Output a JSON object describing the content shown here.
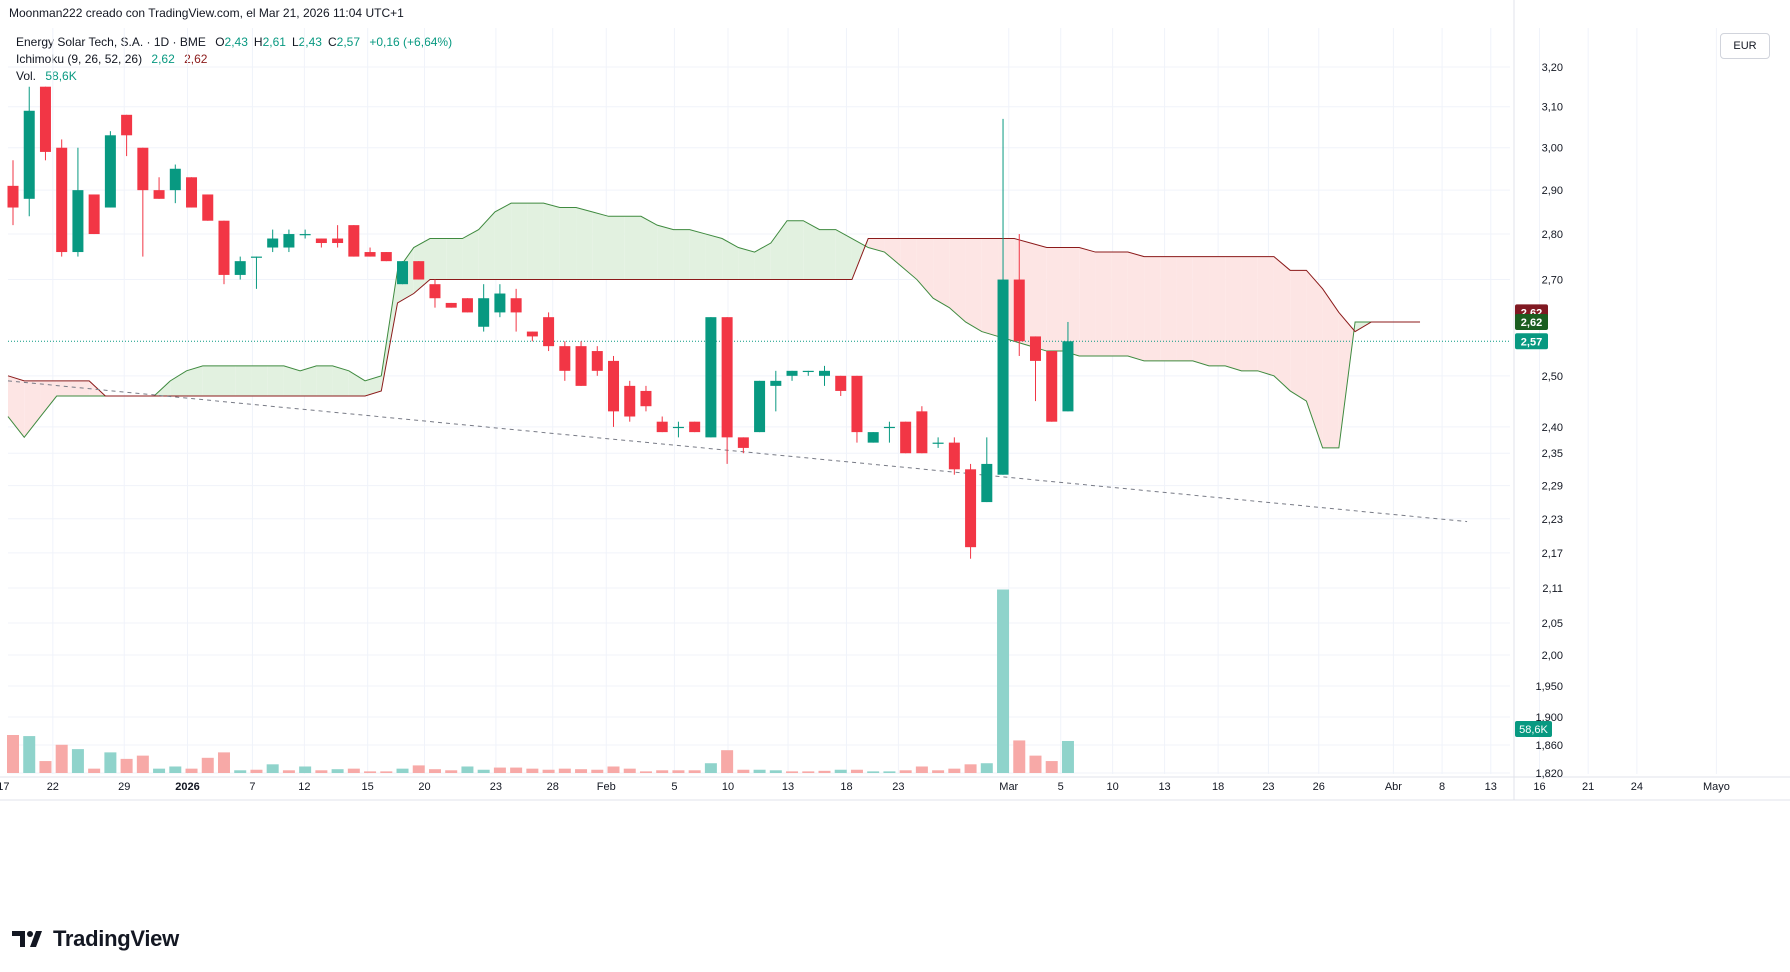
{
  "credit": "Moonman222 creado con TradingView.com, el Mar 21, 2026 11:04 UTC+1",
  "legend": {
    "symbol": "Energy Solar Tech, S.A. · 1D · BME",
    "ohlc": [
      {
        "k": "O",
        "v": "2,43"
      },
      {
        "k": "H",
        "v": "2,61"
      },
      {
        "k": "L",
        "v": "2,43"
      },
      {
        "k": "C",
        "v": "2,57"
      }
    ],
    "change": "+0,16 (+6,64%)",
    "ichimoku_label": "Ichimoku (9, 26, 52, 26)",
    "ichimoku_values": [
      "2,62",
      "2,62"
    ],
    "volume_label": "Vol.",
    "volume_value": "58,6K"
  },
  "currency": "EUR",
  "brand": "TradingView",
  "colors": {
    "up": "#089981",
    "down": "#f23645",
    "vol_up": "#8fd3cb",
    "vol_down": "#f7a9a7",
    "cloud_bull": "#e2f1e0",
    "cloud_bear": "#fde5e4",
    "span_a": "#3f8a3f",
    "span_b": "#8b1a1a",
    "price_line": "#089981",
    "trend": "#787b86"
  },
  "chart_data": {
    "type": "candlestick",
    "y_scale": "log",
    "ylim": [
      1.82,
      3.25
    ],
    "y_ticks": [
      "3,20",
      "3,10",
      "3,00",
      "2,90",
      "2,80",
      "2,70",
      "2,50",
      "2,40",
      "2,35",
      "2,29",
      "2,23",
      "2,17",
      "2,11",
      "2,05",
      "2,00",
      "1,950",
      "1,900",
      "1,860",
      "1,820"
    ],
    "x_ticks": [
      "17",
      "22",
      "29",
      "2026",
      "7",
      "12",
      "15",
      "20",
      "23",
      "28",
      "Feb",
      "5",
      "10",
      "13",
      "18",
      "23",
      "Mar",
      "5",
      "10",
      "13",
      "18",
      "23",
      "26",
      "Abr",
      "8",
      "13",
      "16",
      "21",
      "24",
      "Mayo"
    ],
    "candles": [
      {
        "o": 2.91,
        "h": 2.97,
        "l": 2.82,
        "c": 2.86
      },
      {
        "o": 2.88,
        "h": 3.15,
        "l": 2.84,
        "c": 3.09
      },
      {
        "o": 3.15,
        "h": 3.15,
        "l": 2.97,
        "c": 2.99
      },
      {
        "o": 3.0,
        "h": 3.02,
        "l": 2.75,
        "c": 2.76
      },
      {
        "o": 2.76,
        "h": 3.0,
        "l": 2.75,
        "c": 2.9
      },
      {
        "o": 2.89,
        "h": 2.89,
        "l": 2.8,
        "c": 2.8
      },
      {
        "o": 2.86,
        "h": 3.04,
        "l": 2.86,
        "c": 3.03
      },
      {
        "o": 3.08,
        "h": 3.08,
        "l": 2.98,
        "c": 3.03
      },
      {
        "o": 3.0,
        "h": 3.0,
        "l": 2.75,
        "c": 2.9
      },
      {
        "o": 2.9,
        "h": 2.93,
        "l": 2.88,
        "c": 2.88
      },
      {
        "o": 2.9,
        "h": 2.96,
        "l": 2.87,
        "c": 2.95
      },
      {
        "o": 2.93,
        "h": 2.93,
        "l": 2.86,
        "c": 2.86
      },
      {
        "o": 2.89,
        "h": 2.89,
        "l": 2.83,
        "c": 2.83
      },
      {
        "o": 2.83,
        "h": 2.83,
        "l": 2.69,
        "c": 2.71
      },
      {
        "o": 2.71,
        "h": 2.75,
        "l": 2.7,
        "c": 2.74
      },
      {
        "o": 2.75,
        "h": 2.75,
        "l": 2.68,
        "c": 2.75
      },
      {
        "o": 2.77,
        "h": 2.81,
        "l": 2.76,
        "c": 2.79
      },
      {
        "o": 2.77,
        "h": 2.81,
        "l": 2.76,
        "c": 2.8
      },
      {
        "o": 2.8,
        "h": 2.81,
        "l": 2.79,
        "c": 2.8
      },
      {
        "o": 2.79,
        "h": 2.79,
        "l": 2.77,
        "c": 2.78
      },
      {
        "o": 2.79,
        "h": 2.82,
        "l": 2.77,
        "c": 2.78
      },
      {
        "o": 2.82,
        "h": 2.82,
        "l": 2.75,
        "c": 2.75
      },
      {
        "o": 2.76,
        "h": 2.77,
        "l": 2.75,
        "c": 2.75
      },
      {
        "o": 2.76,
        "h": 2.76,
        "l": 2.74,
        "c": 2.74
      },
      {
        "o": 2.69,
        "h": 2.74,
        "l": 2.69,
        "c": 2.74
      },
      {
        "o": 2.74,
        "h": 2.74,
        "l": 2.7,
        "c": 2.7
      },
      {
        "o": 2.69,
        "h": 2.7,
        "l": 2.64,
        "c": 2.66
      },
      {
        "o": 2.65,
        "h": 2.65,
        "l": 2.64,
        "c": 2.64
      },
      {
        "o": 2.66,
        "h": 2.66,
        "l": 2.63,
        "c": 2.63
      },
      {
        "o": 2.6,
        "h": 2.69,
        "l": 2.59,
        "c": 2.66
      },
      {
        "o": 2.63,
        "h": 2.69,
        "l": 2.62,
        "c": 2.67
      },
      {
        "o": 2.66,
        "h": 2.68,
        "l": 2.59,
        "c": 2.63
      },
      {
        "o": 2.59,
        "h": 2.59,
        "l": 2.57,
        "c": 2.58
      },
      {
        "o": 2.62,
        "h": 2.63,
        "l": 2.55,
        "c": 2.56
      },
      {
        "o": 2.56,
        "h": 2.57,
        "l": 2.49,
        "c": 2.51
      },
      {
        "o": 2.56,
        "h": 2.57,
        "l": 2.48,
        "c": 2.48
      },
      {
        "o": 2.55,
        "h": 2.56,
        "l": 2.5,
        "c": 2.51
      },
      {
        "o": 2.53,
        "h": 2.54,
        "l": 2.4,
        "c": 2.43
      },
      {
        "o": 2.48,
        "h": 2.49,
        "l": 2.41,
        "c": 2.42
      },
      {
        "o": 2.47,
        "h": 2.48,
        "l": 2.43,
        "c": 2.44
      },
      {
        "o": 2.41,
        "h": 2.42,
        "l": 2.39,
        "c": 2.39
      },
      {
        "o": 2.4,
        "h": 2.41,
        "l": 2.38,
        "c": 2.4
      },
      {
        "o": 2.41,
        "h": 2.41,
        "l": 2.39,
        "c": 2.39
      },
      {
        "o": 2.38,
        "h": 2.62,
        "l": 2.38,
        "c": 2.62
      },
      {
        "o": 2.62,
        "h": 2.62,
        "l": 2.33,
        "c": 2.38
      },
      {
        "o": 2.38,
        "h": 2.38,
        "l": 2.35,
        "c": 2.36
      },
      {
        "o": 2.39,
        "h": 2.49,
        "l": 2.39,
        "c": 2.49
      },
      {
        "o": 2.48,
        "h": 2.51,
        "l": 2.43,
        "c": 2.49
      },
      {
        "o": 2.5,
        "h": 2.51,
        "l": 2.49,
        "c": 2.51
      },
      {
        "o": 2.51,
        "h": 2.51,
        "l": 2.5,
        "c": 2.51
      },
      {
        "o": 2.5,
        "h": 2.52,
        "l": 2.48,
        "c": 2.51
      },
      {
        "o": 2.5,
        "h": 2.5,
        "l": 2.46,
        "c": 2.47
      },
      {
        "o": 2.5,
        "h": 2.5,
        "l": 2.37,
        "c": 2.39
      },
      {
        "o": 2.37,
        "h": 2.39,
        "l": 2.37,
        "c": 2.39
      },
      {
        "o": 2.4,
        "h": 2.41,
        "l": 2.37,
        "c": 2.4
      },
      {
        "o": 2.41,
        "h": 2.41,
        "l": 2.35,
        "c": 2.35
      },
      {
        "o": 2.43,
        "h": 2.44,
        "l": 2.35,
        "c": 2.35
      },
      {
        "o": 2.37,
        "h": 2.38,
        "l": 2.36,
        "c": 2.37
      },
      {
        "o": 2.37,
        "h": 2.38,
        "l": 2.31,
        "c": 2.32
      },
      {
        "o": 2.32,
        "h": 2.33,
        "l": 2.16,
        "c": 2.18
      },
      {
        "o": 2.26,
        "h": 2.38,
        "l": 2.26,
        "c": 2.33
      },
      {
        "o": 2.31,
        "h": 3.07,
        "l": 2.31,
        "c": 2.7
      },
      {
        "o": 2.7,
        "h": 2.8,
        "l": 2.54,
        "c": 2.57
      },
      {
        "o": 2.58,
        "h": 2.58,
        "l": 2.45,
        "c": 2.53
      },
      {
        "o": 2.55,
        "h": 2.55,
        "l": 2.41,
        "c": 2.41
      },
      {
        "o": 2.43,
        "h": 2.61,
        "l": 2.43,
        "c": 2.57
      }
    ],
    "volume_max_k": 350,
    "volume": [
      {
        "v": 70,
        "up": false
      },
      {
        "v": 68,
        "up": true
      },
      {
        "v": 22,
        "up": false
      },
      {
        "v": 52,
        "up": false
      },
      {
        "v": 44,
        "up": true
      },
      {
        "v": 8,
        "up": false
      },
      {
        "v": 38,
        "up": true
      },
      {
        "v": 26,
        "up": false
      },
      {
        "v": 32,
        "up": false
      },
      {
        "v": 8,
        "up": true
      },
      {
        "v": 12,
        "up": true
      },
      {
        "v": 8,
        "up": false
      },
      {
        "v": 28,
        "up": false
      },
      {
        "v": 38,
        "up": false
      },
      {
        "v": 5,
        "up": true
      },
      {
        "v": 6,
        "up": false
      },
      {
        "v": 16,
        "up": true
      },
      {
        "v": 5,
        "up": false
      },
      {
        "v": 12,
        "up": true
      },
      {
        "v": 5,
        "up": false
      },
      {
        "v": 7,
        "up": true
      },
      {
        "v": 8,
        "up": false
      },
      {
        "v": 3,
        "up": false
      },
      {
        "v": 3,
        "up": false
      },
      {
        "v": 8,
        "up": true
      },
      {
        "v": 14,
        "up": false
      },
      {
        "v": 7,
        "up": false
      },
      {
        "v": 5,
        "up": false
      },
      {
        "v": 12,
        "up": true
      },
      {
        "v": 6,
        "up": true
      },
      {
        "v": 10,
        "up": false
      },
      {
        "v": 10,
        "up": false
      },
      {
        "v": 8,
        "up": false
      },
      {
        "v": 6,
        "up": false
      },
      {
        "v": 8,
        "up": false
      },
      {
        "v": 7,
        "up": false
      },
      {
        "v": 6,
        "up": false
      },
      {
        "v": 12,
        "up": false
      },
      {
        "v": 8,
        "up": false
      },
      {
        "v": 3,
        "up": false
      },
      {
        "v": 5,
        "up": false
      },
      {
        "v": 5,
        "up": false
      },
      {
        "v": 5,
        "up": false
      },
      {
        "v": 18,
        "up": true
      },
      {
        "v": 42,
        "up": false
      },
      {
        "v": 6,
        "up": false
      },
      {
        "v": 6,
        "up": true
      },
      {
        "v": 5,
        "up": true
      },
      {
        "v": 3,
        "up": false
      },
      {
        "v": 3,
        "up": false
      },
      {
        "v": 4,
        "up": false
      },
      {
        "v": 6,
        "up": true
      },
      {
        "v": 6,
        "up": false
      },
      {
        "v": 3,
        "up": true
      },
      {
        "v": 3,
        "up": true
      },
      {
        "v": 5,
        "up": false
      },
      {
        "v": 12,
        "up": false
      },
      {
        "v": 5,
        "up": false
      },
      {
        "v": 8,
        "up": false
      },
      {
        "v": 16,
        "up": false
      },
      {
        "v": 18,
        "up": true
      },
      {
        "v": 338,
        "up": true
      },
      {
        "v": 60,
        "up": false
      },
      {
        "v": 32,
        "up": false
      },
      {
        "v": 22,
        "up": false
      },
      {
        "v": 59,
        "up": true
      }
    ],
    "ichimoku_span_a": [
      2.42,
      2.38,
      2.42,
      2.46,
      2.46,
      2.46,
      2.46,
      2.46,
      2.46,
      2.46,
      2.49,
      2.51,
      2.52,
      2.52,
      2.52,
      2.52,
      2.52,
      2.52,
      2.51,
      2.52,
      2.52,
      2.51,
      2.49,
      2.5,
      2.72,
      2.77,
      2.79,
      2.79,
      2.79,
      2.81,
      2.85,
      2.87,
      2.87,
      2.87,
      2.86,
      2.86,
      2.85,
      2.84,
      2.84,
      2.84,
      2.82,
      2.81,
      2.81,
      2.8,
      2.79,
      2.77,
      2.76,
      2.78,
      2.83,
      2.83,
      2.81,
      2.81,
      2.79,
      2.77,
      2.76,
      2.73,
      2.7,
      2.66,
      2.64,
      2.61,
      2.59,
      2.58,
      2.57,
      2.56,
      2.55,
      2.55,
      2.54,
      2.54,
      2.54,
      2.54,
      2.53,
      2.53,
      2.53,
      2.53,
      2.52,
      2.52,
      2.51,
      2.51,
      2.5,
      2.47,
      2.45,
      2.36,
      2.36,
      2.61,
      2.61,
      2.61,
      2.61,
      2.61
    ],
    "ichimoku_span_b": [
      2.5,
      2.49,
      2.49,
      2.49,
      2.49,
      2.49,
      2.46,
      2.46,
      2.46,
      2.46,
      2.46,
      2.46,
      2.46,
      2.46,
      2.46,
      2.46,
      2.46,
      2.46,
      2.46,
      2.46,
      2.46,
      2.46,
      2.46,
      2.47,
      2.65,
      2.67,
      2.7,
      2.7,
      2.7,
      2.7,
      2.7,
      2.7,
      2.7,
      2.7,
      2.7,
      2.7,
      2.7,
      2.7,
      2.7,
      2.7,
      2.7,
      2.7,
      2.7,
      2.7,
      2.7,
      2.7,
      2.7,
      2.7,
      2.7,
      2.7,
      2.7,
      2.7,
      2.7,
      2.79,
      2.79,
      2.79,
      2.79,
      2.79,
      2.79,
      2.79,
      2.79,
      2.79,
      2.79,
      2.78,
      2.77,
      2.77,
      2.77,
      2.76,
      2.76,
      2.76,
      2.75,
      2.75,
      2.75,
      2.75,
      2.75,
      2.75,
      2.75,
      2.75,
      2.75,
      2.72,
      2.72,
      2.68,
      2.63,
      2.59,
      2.61,
      2.61,
      2.61,
      2.61
    ],
    "trendline": [
      {
        "bar": 0,
        "price": 2.49
      },
      {
        "bar": 89.9,
        "price": 2.225
      }
    ],
    "last_price": 2.57,
    "price_badges": [
      {
        "text": "2,62",
        "price": 2.63,
        "color": "#801922"
      },
      {
        "text": "2,62",
        "price": 2.61,
        "color": "#1b5e20"
      },
      {
        "text": "2,57",
        "price": 2.57,
        "color": "#089981"
      }
    ],
    "volume_badge": "58,6K"
  }
}
